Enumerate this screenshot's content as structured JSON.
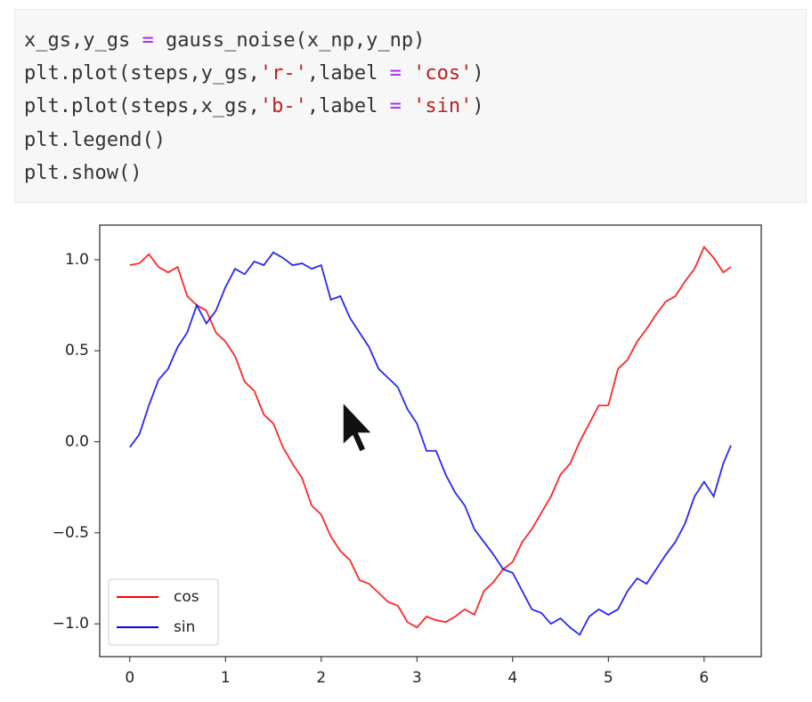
{
  "code": {
    "lines": [
      [
        "x_gs,y_gs ",
        "=",
        " gauss_noise(x_np,y_np)"
      ],
      [
        "plt.plot(steps,y_gs,",
        "'r-'",
        ",label ",
        "=",
        " ",
        "'cos'",
        ")"
      ],
      [
        "plt.plot(steps,x_gs,",
        "'b-'",
        ",label ",
        "=",
        " ",
        "'sin'",
        ")"
      ],
      [
        "plt.legend()"
      ],
      [
        "plt.show()"
      ]
    ]
  },
  "chart_data": {
    "type": "line",
    "x": [
      0,
      0.1,
      0.2,
      0.3,
      0.4,
      0.5,
      0.6,
      0.7,
      0.8,
      0.9,
      1.0,
      1.1,
      1.2,
      1.3,
      1.4,
      1.5,
      1.6,
      1.7,
      1.8,
      1.9,
      2.0,
      2.1,
      2.2,
      2.3,
      2.4,
      2.5,
      2.6,
      2.7,
      2.8,
      2.9,
      3.0,
      3.1,
      3.2,
      3.3,
      3.4,
      3.5,
      3.6,
      3.7,
      3.8,
      3.9,
      4.0,
      4.1,
      4.2,
      4.3,
      4.4,
      4.5,
      4.6,
      4.7,
      4.8,
      4.9,
      5.0,
      5.1,
      5.2,
      5.3,
      5.4,
      5.5,
      5.6,
      5.7,
      5.8,
      5.9,
      6.0,
      6.1,
      6.2,
      6.28
    ],
    "series": [
      {
        "name": "cos",
        "color": "#ff0000",
        "values": [
          0.97,
          0.98,
          1.03,
          0.96,
          0.93,
          0.96,
          0.8,
          0.75,
          0.72,
          0.6,
          0.55,
          0.47,
          0.33,
          0.28,
          0.15,
          0.1,
          -0.03,
          -0.12,
          -0.2,
          -0.35,
          -0.4,
          -0.52,
          -0.6,
          -0.65,
          -0.76,
          -0.78,
          -0.83,
          -0.88,
          -0.9,
          -0.99,
          -1.02,
          -0.96,
          -0.98,
          -0.99,
          -0.96,
          -0.92,
          -0.95,
          -0.82,
          -0.77,
          -0.7,
          -0.66,
          -0.55,
          -0.48,
          -0.39,
          -0.3,
          -0.18,
          -0.12,
          0.0,
          0.1,
          0.2,
          0.2,
          0.4,
          0.45,
          0.55,
          0.62,
          0.7,
          0.77,
          0.8,
          0.88,
          0.95,
          1.07,
          1.01,
          0.93,
          0.96
        ]
      },
      {
        "name": "sin",
        "color": "#0000ff",
        "values": [
          -0.03,
          0.04,
          0.2,
          0.34,
          0.4,
          0.52,
          0.6,
          0.75,
          0.65,
          0.72,
          0.85,
          0.95,
          0.92,
          0.99,
          0.97,
          1.04,
          1.01,
          0.97,
          0.98,
          0.95,
          0.97,
          0.78,
          0.8,
          0.68,
          0.6,
          0.52,
          0.4,
          0.35,
          0.3,
          0.18,
          0.1,
          -0.05,
          -0.05,
          -0.18,
          -0.28,
          -0.35,
          -0.48,
          -0.55,
          -0.62,
          -0.7,
          -0.72,
          -0.82,
          -0.92,
          -0.94,
          -1.0,
          -0.97,
          -1.02,
          -1.06,
          -0.96,
          -0.92,
          -0.95,
          -0.92,
          -0.82,
          -0.75,
          -0.78,
          -0.7,
          -0.62,
          -0.55,
          -0.45,
          -0.3,
          -0.22,
          -0.3,
          -0.12,
          -0.02
        ]
      }
    ],
    "xlim": [
      -0.314,
      6.597
    ],
    "ylim": [
      -1.18,
      1.19
    ],
    "xticks": [
      0,
      1,
      2,
      3,
      4,
      5,
      6
    ],
    "yticks": [
      {
        "value": -1.0,
        "label": "−1.0"
      },
      {
        "value": -0.5,
        "label": "−0.5"
      },
      {
        "value": 0.0,
        "label": "0.0"
      },
      {
        "value": 0.5,
        "label": "0.5"
      },
      {
        "value": 1.0,
        "label": "1.0"
      }
    ],
    "grid": false,
    "legend": "lower left"
  }
}
